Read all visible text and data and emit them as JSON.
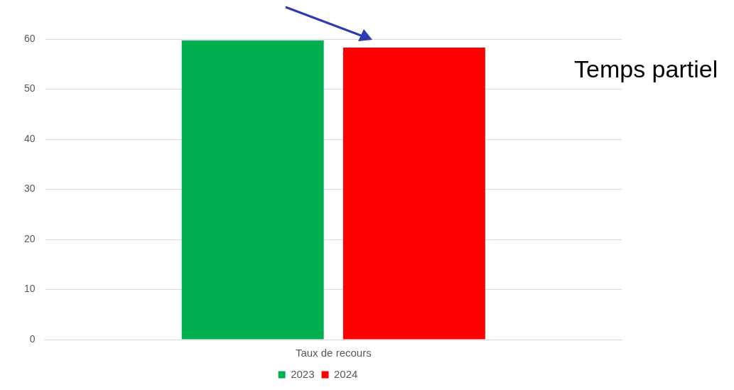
{
  "chart_data": {
    "type": "bar",
    "categories": [
      "Taux de recours"
    ],
    "series": [
      {
        "name": "2023",
        "color": "#00b050",
        "values": [
          59.7
        ]
      },
      {
        "name": "2024",
        "color": "#ff0000",
        "values": [
          58.3
        ]
      }
    ],
    "ylim": [
      0,
      60
    ],
    "yticks": [
      0,
      10,
      20,
      30,
      40,
      50,
      60
    ],
    "grid": "y",
    "legend": "bottom",
    "annotations": [
      "Temps partiel"
    ]
  }
}
